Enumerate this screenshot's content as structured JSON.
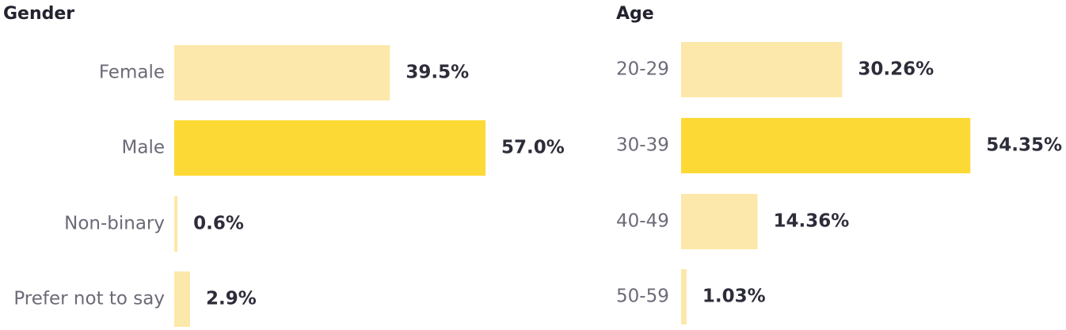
{
  "chart_data": [
    {
      "type": "bar",
      "orientation": "horizontal",
      "title": "Gender",
      "categories": [
        "Female",
        "Male",
        "Non-binary",
        "Prefer not to say"
      ],
      "values": [
        39.5,
        57.0,
        0.6,
        2.9
      ],
      "value_labels": [
        "39.5%",
        "57.0%",
        "0.6%",
        "2.9%"
      ],
      "colors": [
        "#fde8ab",
        "#fdd935",
        "#fde8ab",
        "#fde8ab"
      ]
    },
    {
      "type": "bar",
      "orientation": "horizontal",
      "title": "Age",
      "categories": [
        "20-29",
        "30-39",
        "40-49",
        "50-59"
      ],
      "values": [
        30.26,
        54.35,
        14.36,
        1.03
      ],
      "value_labels": [
        "30.26%",
        "54.35%",
        "14.36%",
        "1.03%"
      ],
      "colors": [
        "#fde8ab",
        "#fdd935",
        "#fde8ab",
        "#fde8ab"
      ]
    }
  ]
}
